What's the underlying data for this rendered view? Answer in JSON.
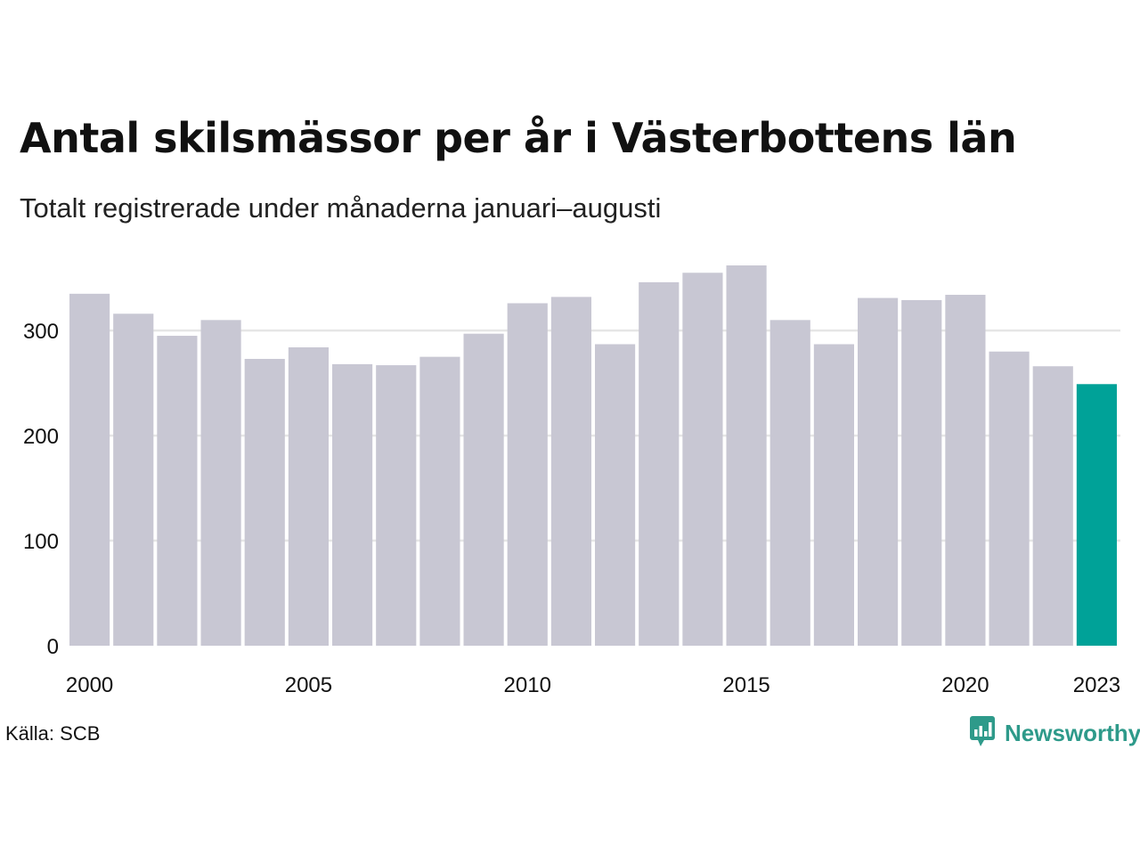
{
  "title": "Antal skilsmässor per år i Västerbottens län",
  "subtitle": "Totalt registrerade under månaderna januari–augusti",
  "source": "Källa: SCB",
  "brand": {
    "name": "Newsworthy",
    "icon": "newsworthy-logo-icon",
    "color": "#2e9a8a"
  },
  "chart_data": {
    "type": "bar",
    "title": "Antal skilsmässor per år i Västerbottens län",
    "subtitle": "Totalt registrerade under månaderna januari–augusti",
    "xlabel": "",
    "ylabel": "",
    "categories": [
      "2000",
      "2001",
      "2002",
      "2003",
      "2004",
      "2005",
      "2006",
      "2007",
      "2008",
      "2009",
      "2010",
      "2011",
      "2012",
      "2013",
      "2014",
      "2015",
      "2016",
      "2017",
      "2018",
      "2019",
      "2020",
      "2021",
      "2022",
      "2023"
    ],
    "values": [
      335,
      316,
      295,
      310,
      273,
      284,
      268,
      267,
      275,
      297,
      326,
      332,
      287,
      346,
      355,
      362,
      310,
      287,
      331,
      329,
      334,
      280,
      266,
      249
    ],
    "ylim": [
      0,
      362
    ],
    "yticks": [
      0,
      100,
      200,
      300
    ],
    "ytick_labels": [
      "0",
      "100",
      "200",
      "300"
    ],
    "xticks": [
      "2000",
      "2005",
      "2010",
      "2015",
      "2020",
      "2023"
    ],
    "grid": "horizontal",
    "bar_color": "#c8c7d3",
    "highlight_color": "#00a298",
    "highlight_category": "2023",
    "grid_color": "#e6e6e6"
  }
}
